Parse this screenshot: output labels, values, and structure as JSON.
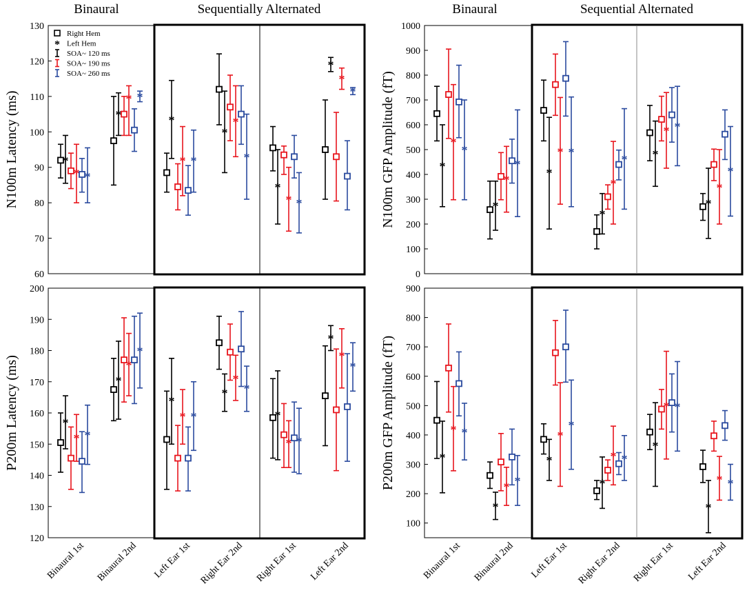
{
  "figure": {
    "left_column": {
      "group_headers": {
        "binaural": "Binaural",
        "sequential": "Sequentially Alternated"
      }
    },
    "right_column": {
      "group_headers": {
        "binaural": "Binaural",
        "sequential": "Sequential Alternated"
      }
    },
    "x_tick_labels": [
      "Binaural 1st",
      "Binaural 2nd",
      "Left Ear 1st",
      "Right Ear 2nd",
      "Right Ear 1st",
      "Left Ear 2nd"
    ],
    "legend": {
      "items": [
        {
          "label": "Right Hem",
          "marker": "square"
        },
        {
          "label": "Left Hem",
          "marker": "asterisk"
        },
        {
          "label": "SOA~ 120 ms",
          "marker": "errorbar",
          "color": "#000000"
        },
        {
          "label": "SOA~ 190 ms",
          "marker": "errorbar",
          "color": "#e8141c"
        },
        {
          "label": "SOA~ 260 ms",
          "marker": "errorbar",
          "color": "#2a4a9e"
        }
      ]
    },
    "colors": {
      "soa120": "#000000",
      "soa190": "#e8141c",
      "soa260": "#2a4a9e"
    }
  },
  "chart_data": [
    {
      "type": "errorbar",
      "panel": "top-left",
      "ylabel": "N100m Latency (ms)",
      "ylim": [
        60,
        130
      ],
      "yticks": [
        60,
        70,
        80,
        90,
        100,
        110,
        120,
        130
      ],
      "conditions": [
        "Binaural 1st",
        "Binaural 2nd",
        "Left Ear 1st",
        "Right Ear 2nd",
        "Right Ear 1st",
        "Left Ear 2nd"
      ],
      "series": [
        {
          "name": "Right Hem, SOA~ 120 ms",
          "hemisphere": "Right",
          "soa": 120,
          "mean": [
            92,
            97.5,
            88.5,
            112,
            95.5,
            95
          ],
          "lower": [
            87,
            85,
            83,
            102,
            89,
            81
          ],
          "upper": [
            96.5,
            110,
            94,
            122,
            101.5,
            109
          ]
        },
        {
          "name": "Left Hem, SOA~ 120 ms",
          "hemisphere": "Left",
          "soa": 120,
          "mean": [
            92,
            105,
            103.5,
            100,
            84.5,
            119
          ],
          "lower": [
            85.5,
            99,
            92.5,
            88.5,
            74,
            117
          ],
          "upper": [
            99,
            111,
            114.5,
            111.5,
            95,
            121
          ]
        },
        {
          "name": "Right Hem, SOA~ 190 ms",
          "hemisphere": "Right",
          "soa": 190,
          "mean": [
            89,
            105,
            84.5,
            107,
            93.5,
            93
          ],
          "lower": [
            84,
            99,
            78,
            97.5,
            88,
            80.5
          ],
          "upper": [
            94,
            110,
            91,
            116,
            96,
            105.5
          ]
        },
        {
          "name": "Left Hem, SOA~ 190 ms",
          "hemisphere": "Left",
          "soa": 190,
          "mean": [
            88.5,
            109.5,
            92,
            103,
            81,
            115
          ],
          "lower": [
            80,
            99,
            82,
            93,
            72,
            112
          ],
          "upper": [
            96.5,
            113,
            101.5,
            113,
            90,
            118
          ]
        },
        {
          "name": "Right Hem, SOA~ 260 ms",
          "hemisphere": "Right",
          "soa": 260,
          "mean": [
            88,
            100.5,
            83.5,
            105,
            93,
            87.5
          ],
          "lower": [
            83,
            94.5,
            76.5,
            96.5,
            87,
            78
          ],
          "upper": [
            92.5,
            106.5,
            90.5,
            113,
            99,
            97.5
          ]
        },
        {
          "name": "Left Hem, SOA~ 260 ms",
          "hemisphere": "Left",
          "soa": 260,
          "mean": [
            87.5,
            110,
            92,
            93,
            80,
            111.5
          ],
          "lower": [
            80,
            108.5,
            83,
            81,
            71.5,
            110.5
          ],
          "upper": [
            95.5,
            111.5,
            100.5,
            105,
            88.5,
            112.5
          ]
        }
      ]
    },
    {
      "type": "errorbar",
      "panel": "top-right",
      "ylabel": "N100m GFP Amplitude (fT)",
      "ylim": [
        0,
        1000
      ],
      "yticks": [
        0,
        100,
        200,
        300,
        400,
        500,
        600,
        700,
        800,
        900,
        1000
      ],
      "conditions": [
        "Binaural 1st",
        "Binaural 2nd",
        "Left Ear 1st",
        "Right Ear 2nd",
        "Right Ear 1st",
        "Left Ear 2nd"
      ],
      "series": [
        {
          "name": "Right Hem, SOA~ 120 ms",
          "hemisphere": "Right",
          "soa": 120,
          "mean": [
            645,
            258,
            658,
            170,
            568,
            270
          ],
          "lower": [
            535,
            140,
            535,
            100,
            455,
            215
          ],
          "upper": [
            755,
            373,
            780,
            237,
            678,
            323
          ]
        },
        {
          "name": "Left Hem, SOA~ 120 ms",
          "hemisphere": "Left",
          "soa": 120,
          "mean": [
            435,
            275,
            408,
            242,
            483,
            285
          ],
          "lower": [
            270,
            175,
            180,
            160,
            352,
            142
          ],
          "upper": [
            600,
            373,
            630,
            323,
            615,
            425
          ]
        },
        {
          "name": "Right Hem, SOA~ 190 ms",
          "hemisphere": "Right",
          "soa": 190,
          "mean": [
            722,
            392,
            762,
            310,
            622,
            440
          ],
          "lower": [
            545,
            298,
            638,
            260,
            535,
            375
          ],
          "upper": [
            905,
            488,
            885,
            358,
            715,
            502
          ]
        },
        {
          "name": "Left Hem, SOA~ 190 ms",
          "hemisphere": "Left",
          "soa": 190,
          "mean": [
            532,
            380,
            493,
            365,
            578,
            348
          ],
          "lower": [
            298,
            248,
            280,
            200,
            425,
            200
          ],
          "upper": [
            762,
            513,
            710,
            533,
            730,
            500
          ]
        },
        {
          "name": "Right Hem, SOA~ 260 ms",
          "hemisphere": "Right",
          "soa": 260,
          "mean": [
            692,
            455,
            787,
            440,
            640,
            562
          ],
          "lower": [
            548,
            365,
            635,
            378,
            530,
            460
          ],
          "upper": [
            840,
            542,
            935,
            498,
            750,
            660
          ]
        },
        {
          "name": "Left Hem, SOA~ 260 ms",
          "hemisphere": "Left",
          "soa": 260,
          "mean": [
            500,
            443,
            492,
            463,
            595,
            415
          ],
          "lower": [
            298,
            230,
            270,
            260,
            435,
            232
          ],
          "upper": [
            700,
            660,
            712,
            665,
            755,
            593
          ]
        }
      ]
    },
    {
      "type": "errorbar",
      "panel": "bottom-left",
      "ylabel": "P200m Latency (ms)",
      "ylim": [
        120,
        200
      ],
      "yticks": [
        120,
        130,
        140,
        150,
        160,
        170,
        180,
        190,
        200
      ],
      "conditions": [
        "Binaural 1st",
        "Binaural 2nd",
        "Left Ear 1st",
        "Right Ear 2nd",
        "Right Ear 1st",
        "Left Ear 2nd"
      ],
      "series": [
        {
          "name": "Right Hem, SOA~ 120 ms",
          "hemisphere": "Right",
          "soa": 120,
          "mean": [
            150.5,
            167.5,
            151.5,
            182.5,
            158.5,
            165.5
          ],
          "lower": [
            141,
            157.5,
            135.5,
            174,
            145.5,
            149.5
          ],
          "upper": [
            160,
            177.5,
            167,
            191,
            171,
            181.5
          ]
        },
        {
          "name": "Left Hem, SOA~ 120 ms",
          "hemisphere": "Left",
          "soa": 120,
          "mean": [
            157,
            170.5,
            164,
            166.5,
            159.5,
            184
          ],
          "lower": [
            148.5,
            158,
            150,
            160.5,
            145,
            180
          ],
          "upper": [
            165.5,
            183,
            177.5,
            172.5,
            173.5,
            188
          ]
        },
        {
          "name": "Right Hem, SOA~ 190 ms",
          "hemisphere": "Right",
          "soa": 190,
          "mean": [
            145.5,
            177,
            145.5,
            179.5,
            153,
            161
          ],
          "lower": [
            135.5,
            163.5,
            135,
            170.5,
            142.5,
            141.5
          ],
          "upper": [
            155.5,
            190.5,
            156,
            188.5,
            163,
            180.5
          ]
        },
        {
          "name": "Left Hem, SOA~ 190 ms",
          "hemisphere": "Left",
          "soa": 190,
          "mean": [
            152,
            175.5,
            159,
            171,
            150.5,
            178.5
          ],
          "lower": [
            144.5,
            165.5,
            150,
            164,
            142.5,
            168
          ],
          "upper": [
            159.5,
            185.5,
            167.5,
            178.5,
            157.5,
            187
          ]
        },
        {
          "name": "Right Hem, SOA~ 260 ms",
          "hemisphere": "Right",
          "soa": 260,
          "mean": [
            144.5,
            177,
            145.5,
            180.5,
            152,
            162
          ],
          "lower": [
            134.5,
            163,
            135,
            168.5,
            141,
            144.5
          ],
          "upper": [
            154,
            191,
            155.5,
            192.5,
            163.5,
            179
          ]
        },
        {
          "name": "Left Hem, SOA~ 260 ms",
          "hemisphere": "Left",
          "soa": 260,
          "mean": [
            153,
            180,
            159,
            168,
            151,
            175
          ],
          "lower": [
            143.5,
            168,
            148,
            160.5,
            140.5,
            167
          ],
          "upper": [
            162.5,
            192,
            170,
            175,
            161.5,
            182.5
          ]
        }
      ]
    },
    {
      "type": "errorbar",
      "panel": "bottom-right",
      "ylabel": "P200m GFP Amplitude (fT)",
      "ylim": [
        50,
        900
      ],
      "yticks": [
        100,
        200,
        300,
        400,
        500,
        600,
        700,
        800,
        900
      ],
      "conditions": [
        "Binaural 1st",
        "Binaural 2nd",
        "Left Ear 1st",
        "Right Ear 2nd",
        "Right Ear 1st",
        "Left Ear 2nd"
      ],
      "series": [
        {
          "name": "Right Hem, SOA~ 120 ms",
          "hemisphere": "Right",
          "soa": 120,
          "mean": [
            450,
            262,
            385,
            210,
            410,
            292
          ],
          "lower": [
            320,
            218,
            335,
            180,
            350,
            238
          ],
          "upper": [
            582,
            308,
            438,
            245,
            470,
            348
          ]
        },
        {
          "name": "Left Hem, SOA~ 120 ms",
          "hemisphere": "Left",
          "soa": 120,
          "mean": [
            325,
            157,
            315,
            237,
            365,
            155
          ],
          "lower": [
            203,
            112,
            245,
            150,
            225,
            67
          ],
          "upper": [
            447,
            205,
            385,
            325,
            510,
            245
          ]
        },
        {
          "name": "Right Hem, SOA~ 190 ms",
          "hemisphere": "Right",
          "soa": 190,
          "mean": [
            628,
            308,
            680,
            280,
            488,
            397
          ],
          "lower": [
            478,
            210,
            570,
            245,
            420,
            345
          ],
          "upper": [
            778,
            405,
            790,
            315,
            555,
            447
          ]
        },
        {
          "name": "Left Hem, SOA~ 190 ms",
          "hemisphere": "Left",
          "soa": 190,
          "mean": [
            420,
            225,
            400,
            330,
            500,
            250
          ],
          "lower": [
            278,
            160,
            225,
            230,
            318,
            178
          ],
          "upper": [
            565,
            290,
            578,
            430,
            685,
            327
          ]
        },
        {
          "name": "Right Hem, SOA~ 260 ms",
          "hemisphere": "Right",
          "soa": 260,
          "mean": [
            575,
            325,
            700,
            302,
            510,
            432
          ],
          "lower": [
            465,
            230,
            580,
            265,
            410,
            382
          ],
          "upper": [
            683,
            420,
            825,
            340,
            608,
            483
          ]
        },
        {
          "name": "Left Hem, SOA~ 260 ms",
          "hemisphere": "Left",
          "soa": 260,
          "mean": [
            410,
            245,
            435,
            320,
            497,
            237
          ],
          "lower": [
            315,
            160,
            283,
            245,
            345,
            178
          ],
          "upper": [
            508,
            330,
            587,
            398,
            650,
            300
          ]
        }
      ]
    }
  ]
}
